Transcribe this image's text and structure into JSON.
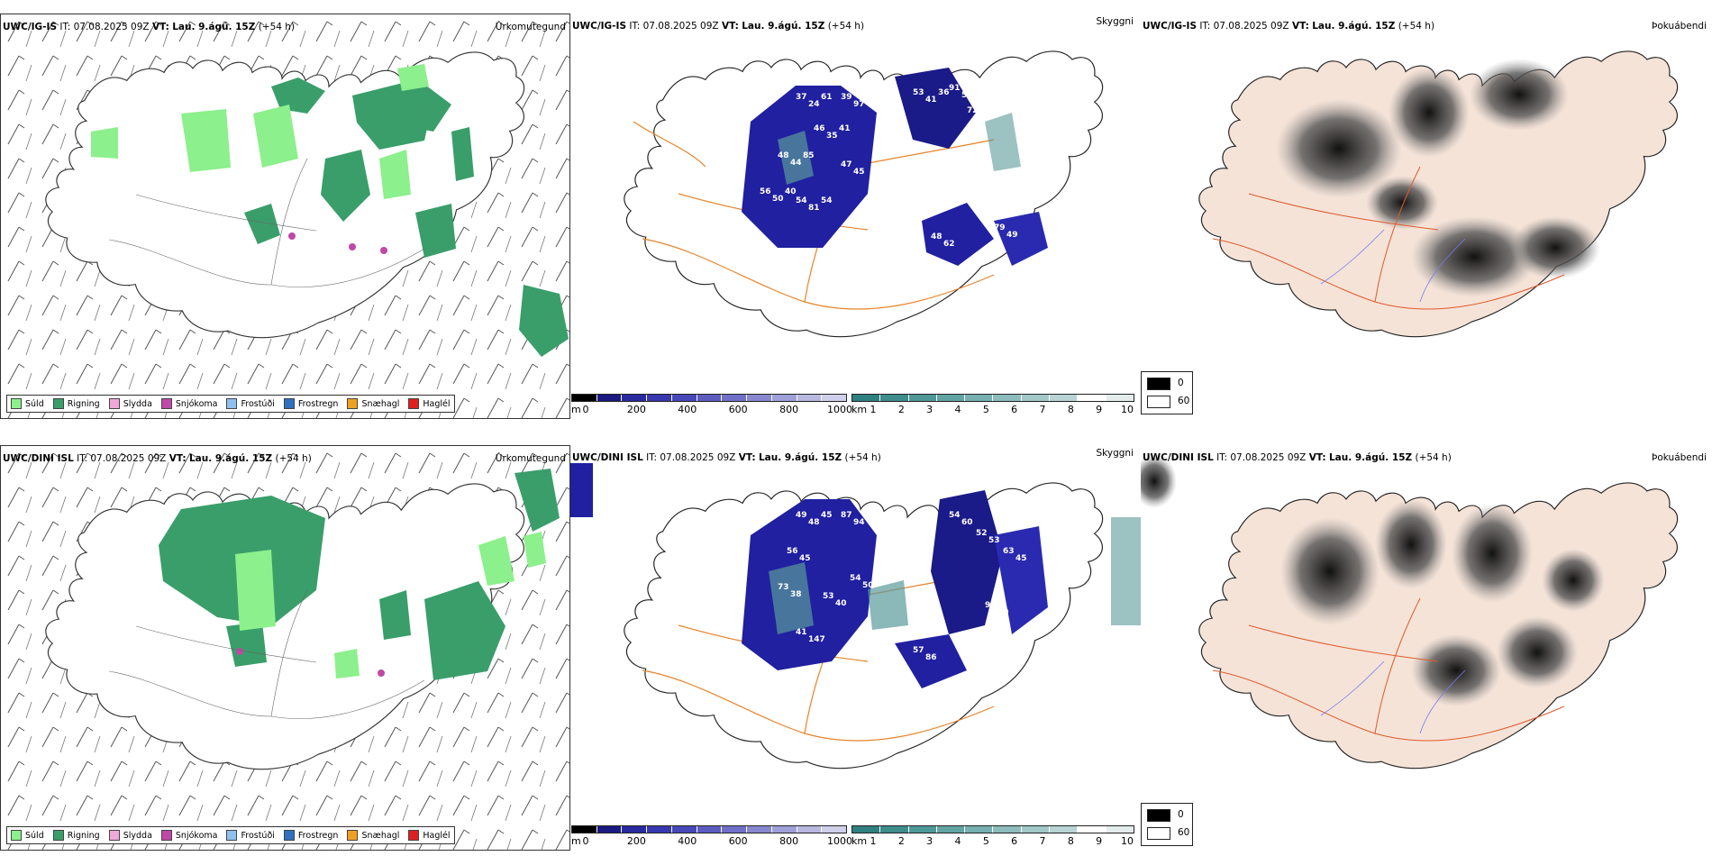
{
  "panels": [
    {
      "id": "top-precip",
      "model": "UWC/IG-IS",
      "it": "IT: 07.08.2025 09Z",
      "vt_label": "VT:",
      "vt": "Lau. 9.ágú. 15Z",
      "lead": "(+54 h)",
      "title": "Úrkomutegund"
    },
    {
      "id": "top-cloud",
      "model": "UWC/IG-IS",
      "it": "IT: 07.08.2025 09Z",
      "vt_label": "VT:",
      "vt": "Lau. 9.ágú. 15Z",
      "lead": "(+54 h)",
      "title": "Skyggni"
    },
    {
      "id": "top-fog",
      "model": "UWC/IG-IS",
      "it": "IT: 07.08.2025 09Z",
      "vt_label": "VT:",
      "vt": "Lau. 9.ágú. 15Z",
      "lead": "(+54 h)",
      "title": "Þokuábendi"
    },
    {
      "id": "bottom-precip",
      "model": "UWC/DINI ISL",
      "it": "IT: 07.08.2025 09Z",
      "vt_label": "VT:",
      "vt": "Lau. 9.ágú. 15Z",
      "lead": "(+54 h)",
      "title": "Úrkomutegund"
    },
    {
      "id": "bottom-cloud",
      "model": "UWC/DINI ISL",
      "it": "IT: 07.08.2025 09Z",
      "vt_label": "VT:",
      "vt": "Lau. 9.ágú. 15Z",
      "lead": "(+54 h)",
      "title": "Skyggni"
    },
    {
      "id": "bottom-fog",
      "model": "UWC/DINI ISL",
      "it": "IT: 07.08.2025 09Z",
      "vt_label": "VT:",
      "vt": "Lau. 9.ágú. 15Z",
      "lead": "(+54 h)",
      "title": "Þokuábendi"
    }
  ],
  "precip_legend": [
    {
      "label": "Súld",
      "color": "#8cf08c"
    },
    {
      "label": "Rigning",
      "color": "#3a9e6a"
    },
    {
      "label": "Slydda",
      "color": "#f0a8d8"
    },
    {
      "label": "Snjókoma",
      "color": "#c048a8"
    },
    {
      "label": "Frostúði",
      "color": "#90c0f0"
    },
    {
      "label": "Frostregn",
      "color": "#3070c0"
    },
    {
      "label": "Snæhagl",
      "color": "#f0a020"
    },
    {
      "label": "Haglél",
      "color": "#e02020"
    }
  ],
  "cloud_base_bar": {
    "unit": "m",
    "ticks": [
      "0",
      "200",
      "400",
      "600",
      "800",
      "1000"
    ],
    "colors": [
      "#000000",
      "#1a1a80",
      "#2a2aa0",
      "#3838b0",
      "#4848b8",
      "#5c5cc0",
      "#7070c8",
      "#8888d0",
      "#a0a0d8",
      "#b8b8e0",
      "#d0d0ea"
    ]
  },
  "visibility_bar": {
    "unit": "km",
    "ticks": [
      "1",
      "2",
      "3",
      "4",
      "5",
      "6",
      "7",
      "8",
      "9",
      "10"
    ],
    "colors": [
      "#2f8080",
      "#3e8c8c",
      "#4f9898",
      "#62a4a4",
      "#76b0b0",
      "#8cbcbc",
      "#a2c8c8",
      "#b8d4d4",
      "#ceе0e0",
      "#e4ecec"
    ]
  },
  "fog_legend": {
    "high": "0",
    "low": "60"
  },
  "cloud_labels_top": [
    "37",
    "39",
    "53",
    "91",
    "72",
    "46",
    "48",
    "56",
    "54",
    "47",
    "48",
    "79",
    "24",
    "97",
    "41",
    "56",
    "53",
    "35",
    "44",
    "50",
    "81",
    "45",
    "62",
    "49",
    "61",
    "41",
    "36",
    "48",
    "54",
    "41",
    "85",
    "40",
    "54"
  ],
  "cloud_labels_bottom": [
    "49",
    "87",
    "54",
    "52",
    "63",
    "56",
    "73",
    "53",
    "54",
    "41",
    "57",
    "96",
    "48",
    "94",
    "60",
    "53",
    "45",
    "45",
    "38",
    "40",
    "50",
    "147",
    "86",
    "80",
    "45",
    "58"
  ]
}
